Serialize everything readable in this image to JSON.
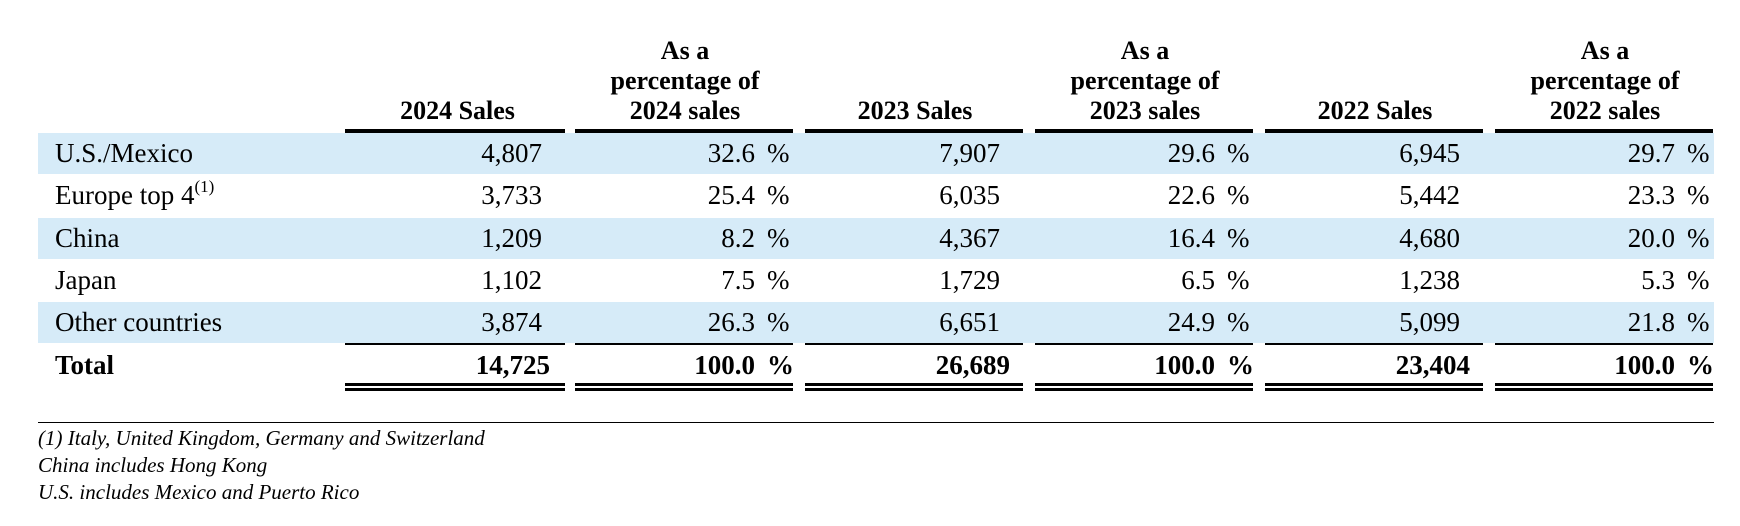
{
  "table": {
    "columns": [
      {
        "header": "2024 Sales"
      },
      {
        "header": "As a percentage of 2024 sales",
        "lines": [
          "As a",
          "percentage of",
          "2024 sales"
        ]
      },
      {
        "header": "2023 Sales"
      },
      {
        "header": "As a percentage of 2023 sales",
        "lines": [
          "As a",
          "percentage of",
          "2023 sales"
        ]
      },
      {
        "header": "2022 Sales"
      },
      {
        "header": "As a percentage of 2022 sales",
        "lines": [
          "As a",
          "percentage of",
          "2022 sales"
        ]
      }
    ],
    "rows": [
      {
        "label": "U.S./Mexico",
        "footnote": "",
        "shaded": true,
        "values": [
          "4,807",
          "32.6",
          "7,907",
          "29.6",
          "6,945",
          "29.7"
        ]
      },
      {
        "label": "Europe top 4",
        "footnote": "(1)",
        "shaded": false,
        "values": [
          "3,733",
          "25.4",
          "6,035",
          "22.6",
          "5,442",
          "23.3"
        ]
      },
      {
        "label": "China",
        "footnote": "",
        "shaded": true,
        "values": [
          "1,209",
          "8.2",
          "4,367",
          "16.4",
          "4,680",
          "20.0"
        ]
      },
      {
        "label": "Japan",
        "footnote": "",
        "shaded": false,
        "values": [
          "1,102",
          "7.5",
          "1,729",
          "6.5",
          "1,238",
          "5.3"
        ]
      },
      {
        "label": "Other countries",
        "footnote": "",
        "shaded": true,
        "values": [
          "3,874",
          "26.3",
          "6,651",
          "24.9",
          "5,099",
          "21.8"
        ]
      }
    ],
    "total": {
      "label": "Total",
      "values": [
        "14,725",
        "100.0",
        "26,689",
        "100.0",
        "23,404",
        "100.0"
      ]
    },
    "percent_sign": "%"
  },
  "footnotes": [
    "(1) Italy, United Kingdom, Germany and Switzerland",
    "China includes Hong Kong",
    "U.S. includes Mexico and Puerto Rico"
  ],
  "colors": {
    "row_shade": "#d6ebf8"
  }
}
